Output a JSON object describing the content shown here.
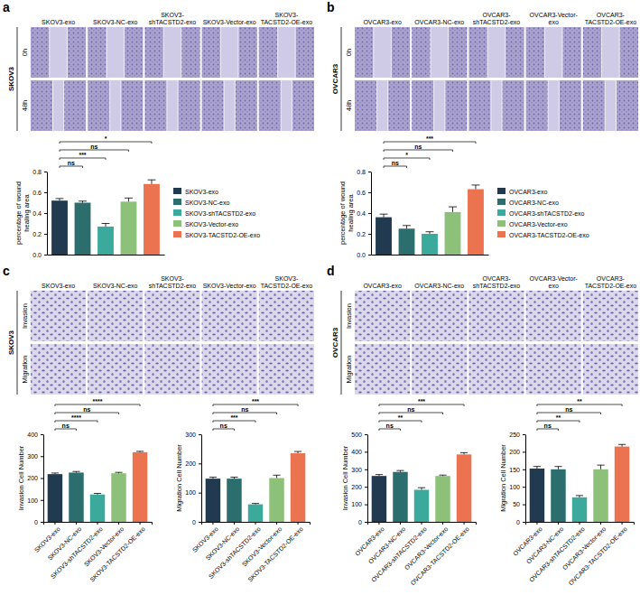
{
  "panels": [
    {
      "letter": "a",
      "cell_line": "SKOV3",
      "columns": [
        "SKOV3-exo",
        "SKOV3-NC-exo",
        "SKOV3-shTACSTD2-exo",
        "SKOV3-Vector-exo",
        "SKOV3-TACSTD2-OE-exo"
      ],
      "rows": [
        "0h",
        "48h"
      ]
    },
    {
      "letter": "b",
      "cell_line": "OVCAR3",
      "columns": [
        "OVCAR3-exo",
        "OVCAR3-NC-exo",
        "OVCAR3-shTACSTD2-exo",
        "OVCAR3-Vector-exo",
        "OVCAR3-TACSTD2-OE-exo"
      ],
      "rows": [
        "0h",
        "48h"
      ]
    },
    {
      "letter": "c",
      "cell_line": "SKOV3",
      "columns": [
        "SKOV3-exo",
        "SKOV3-NC-exo",
        "SKOV3-shTACSTD2-exo",
        "SKOV3-Vector-exo",
        "SKOV3-TACSTD2-OE-exo"
      ],
      "rows": [
        "Invasion",
        "Migration"
      ]
    },
    {
      "letter": "d",
      "cell_line": "OVCAR3",
      "columns": [
        "OVCAR3-exo",
        "OVCAR3-NC-exo",
        "OVCAR3-shTACSTD2-exo",
        "OVCAR3-Vector-exo",
        "OVCAR3-TACSTD2-OE-exo"
      ],
      "rows": [
        "Invasion",
        "Migration"
      ]
    }
  ],
  "chart_data": [
    {
      "type": "bar",
      "ylabel": "percentage of wound healing area",
      "categories": [
        "SKOV3-exo",
        "SKOV3-NC-exo",
        "SKOV3-shTACSTD2-exo",
        "SKOV3-Vector-exo",
        "SKOV3-TACSTD2-OE-exo"
      ],
      "values": [
        0.52,
        0.5,
        0.27,
        0.51,
        0.68
      ],
      "errors": [
        0.02,
        0.015,
        0.03,
        0.035,
        0.04
      ],
      "colors": [
        "#213a4f",
        "#2c6e6e",
        "#3ba99c",
        "#8dc17a",
        "#ec7350"
      ],
      "ylim": [
        0,
        0.8
      ],
      "yticks": [
        {
          "value": 0,
          "label": "0.0"
        },
        0.2,
        0.4,
        0.6,
        0.8
      ],
      "tick_labels": "y",
      "legend": "right",
      "annotations": [
        {
          "text": "ns",
          "between": [
            "SKOV3-exo",
            "SKOV3-NC-exo"
          ]
        },
        {
          "text": "***",
          "between": [
            "SKOV3-exo",
            "SKOV3-shTACSTD2-exo"
          ]
        },
        {
          "text": "ns",
          "between": [
            "SKOV3-exo",
            "SKOV3-Vector-exo"
          ]
        },
        {
          "text": "*",
          "between": [
            "SKOV3-exo",
            "SKOV3-TACSTD2-OE-exo"
          ]
        }
      ]
    },
    {
      "type": "bar",
      "ylabel": "percentage of wound healing area",
      "categories": [
        "OVCAR3-exo",
        "OVCAR3-NC-exo",
        "OVCAR3-shTACSTD2-exo",
        "OVCAR3-Vector-exo",
        "OVCAR3-TACSTD2-OE-exo"
      ],
      "values": [
        0.36,
        0.25,
        0.2,
        0.41,
        0.63
      ],
      "errors": [
        0.03,
        0.03,
        0.02,
        0.05,
        0.04
      ],
      "colors": [
        "#213a4f",
        "#2c6e6e",
        "#3ba99c",
        "#8dc17a",
        "#ec7350"
      ],
      "ylim": [
        0,
        0.8
      ],
      "yticks": [
        {
          "value": 0,
          "label": "0.0"
        },
        0.2,
        0.4,
        0.6,
        0.8
      ],
      "tick_labels": "y",
      "legend": "right",
      "annotations": [
        {
          "text": "ns",
          "between": [
            "OVCAR3-exo",
            "OVCAR3-NC-exo"
          ]
        },
        {
          "text": "*",
          "between": [
            "OVCAR3-exo",
            "OVCAR3-shTACSTD2-exo"
          ]
        },
        {
          "text": "ns",
          "between": [
            "OVCAR3-exo",
            "OVCAR3-Vector-exo"
          ]
        },
        {
          "text": "***",
          "between": [
            "OVCAR3-exo",
            "OVCAR3-TACSTD2-OE-exo"
          ]
        }
      ]
    },
    {
      "type": "bar",
      "ylabel": "Invasion Cell Number",
      "categories": [
        "SKOV3-exo",
        "SKOV3-NC-exo",
        "SKOV3-shTACSTD2-exo",
        "SKOV3-Vector-exo",
        "SKOV3-TACSTD2-OE-exo"
      ],
      "values": [
        218,
        225,
        125,
        222,
        318
      ],
      "errors": [
        5,
        5,
        5,
        4,
        4
      ],
      "colors": [
        "#213a4f",
        "#2c6e6e",
        "#3ba99c",
        "#8dc17a",
        "#ec7350"
      ],
      "ylim": [
        0,
        400
      ],
      "yticks": [
        0,
        100,
        200,
        300,
        400
      ],
      "annotations": [
        {
          "text": "ns",
          "between": [
            "SKOV3-exo",
            "SKOV3-NC-exo"
          ]
        },
        {
          "text": "****",
          "between": [
            "SKOV3-exo",
            "SKOV3-shTACSTD2-exo"
          ]
        },
        {
          "text": "ns",
          "between": [
            "SKOV3-exo",
            "SKOV3-Vector-exo"
          ]
        },
        {
          "text": "****",
          "between": [
            "SKOV3-exo",
            "SKOV3-TACSTD2-OE-exo"
          ]
        }
      ]
    },
    {
      "type": "bar",
      "ylabel": "Migration Cell Number",
      "categories": [
        "SKOV3-exo",
        "SKOV3-NC-exo",
        "SKOV3-shTACSTD2-exo",
        "SKOV3-Vector-exo",
        "SKOV3-TACSTD2-OE-exo"
      ],
      "values": [
        148,
        148,
        60,
        150,
        235
      ],
      "errors": [
        5,
        5,
        3,
        10,
        6
      ],
      "colors": [
        "#213a4f",
        "#2c6e6e",
        "#3ba99c",
        "#8dc17a",
        "#ec7350"
      ],
      "ylim": [
        0,
        300
      ],
      "yticks": [
        0,
        100,
        200,
        300
      ],
      "annotations": [
        {
          "text": "ns",
          "between": [
            "SKOV3-exo",
            "SKOV3-NC-exo"
          ]
        },
        {
          "text": "***",
          "between": [
            "SKOV3-exo",
            "SKOV3-shTACSTD2-exo"
          ]
        },
        {
          "text": "ns",
          "between": [
            "SKOV3-exo",
            "SKOV3-Vector-exo"
          ]
        },
        {
          "text": "***",
          "between": [
            "SKOV3-exo",
            "SKOV3-TACSTD2-OE-exo"
          ]
        }
      ]
    },
    {
      "type": "bar",
      "ylabel": "Invasion Cell Number",
      "categories": [
        "OVCAR3-exo",
        "OVCAR3-NC-exo",
        "OVCAR3-shTACSTD2-exo",
        "OVCAR3-Vector-exo",
        "OVCAR3-TACSTD2-OE-exo"
      ],
      "values": [
        262,
        285,
        183,
        262,
        385
      ],
      "errors": [
        8,
        8,
        12,
        5,
        10
      ],
      "colors": [
        "#213a4f",
        "#2c6e6e",
        "#3ba99c",
        "#8dc17a",
        "#ec7350"
      ],
      "ylim": [
        0,
        500
      ],
      "yticks": [
        0,
        100,
        200,
        300,
        400,
        500
      ],
      "annotations": [
        {
          "text": "ns",
          "between": [
            "OVCAR3-exo",
            "OVCAR3-NC-exo"
          ]
        },
        {
          "text": "**",
          "between": [
            "OVCAR3-exo",
            "OVCAR3-shTACSTD2-exo"
          ]
        },
        {
          "text": "ns",
          "between": [
            "OVCAR3-exo",
            "OVCAR3-Vector-exo"
          ]
        },
        {
          "text": "***",
          "between": [
            "OVCAR3-exo",
            "OVCAR3-TACSTD2-OE-exo"
          ]
        }
      ]
    },
    {
      "type": "bar",
      "ylabel": "Migration Cell Number",
      "categories": [
        "OVCAR3-exo",
        "OVCAR3-NC-exo",
        "OVCAR3-shTACSTD2-exo",
        "OVCAR3-Vector-exo",
        "OVCAR3-TACSTD2-OE-exo"
      ],
      "values": [
        152,
        150,
        70,
        150,
        215
      ],
      "errors": [
        6,
        8,
        5,
        12,
        6
      ],
      "colors": [
        "#213a4f",
        "#2c6e6e",
        "#3ba99c",
        "#8dc17a",
        "#ec7350"
      ],
      "ylim": [
        0,
        250
      ],
      "yticks": [
        0,
        50,
        100,
        150,
        200,
        250
      ],
      "annotations": [
        {
          "text": "ns",
          "between": [
            "OVCAR3-exo",
            "OVCAR3-NC-exo"
          ]
        },
        {
          "text": "**",
          "between": [
            "OVCAR3-exo",
            "OVCAR3-shTACSTD2-exo"
          ]
        },
        {
          "text": "ns",
          "between": [
            "OVCAR3-exo",
            "OVCAR3-Vector-exo"
          ]
        },
        {
          "text": "**",
          "between": [
            "OVCAR3-exo",
            "OVCAR3-TACSTD2-OE-exo"
          ]
        }
      ]
    }
  ]
}
